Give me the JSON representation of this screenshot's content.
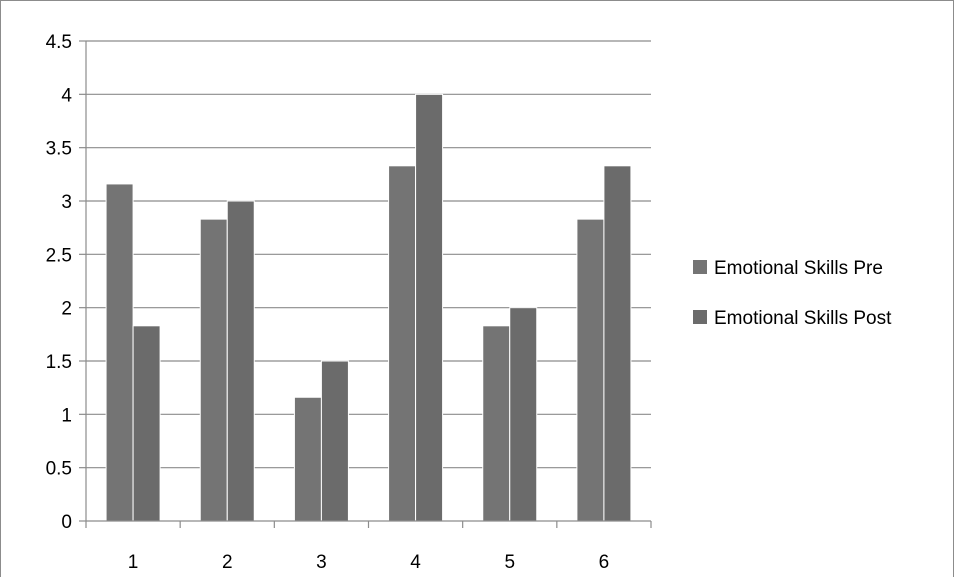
{
  "chart_data": {
    "type": "bar",
    "categories": [
      "1",
      "2",
      "3",
      "4",
      "5",
      "6"
    ],
    "series": [
      {
        "name": "Emotional Skills Pre",
        "values": [
          3.16,
          2.83,
          1.16,
          3.33,
          1.83,
          2.83
        ],
        "color": "#747474"
      },
      {
        "name": "Emotional Skills Post",
        "values": [
          1.83,
          3.0,
          1.5,
          4.0,
          2.0,
          3.33
        ],
        "color": "#6b6b6b"
      }
    ],
    "y_ticks": [
      "0",
      "0.5",
      "1",
      "1.5",
      "2",
      "2.5",
      "3",
      "3.5",
      "4",
      "4.5"
    ],
    "ylim": [
      0,
      4.5
    ],
    "grid": true,
    "legend_position": "right",
    "colors": {
      "gridline": "#8c8c8c",
      "axis": "#8c8c8c",
      "bar_edge": "#ffffff"
    }
  }
}
